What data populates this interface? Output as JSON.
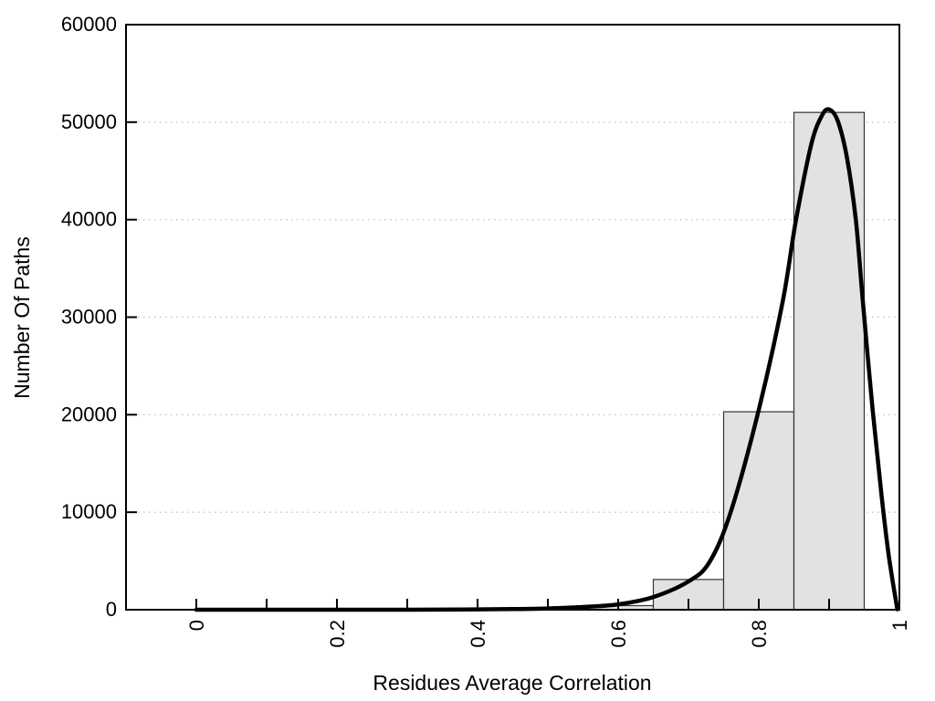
{
  "figure": {
    "background": "#ffffff",
    "description": "Histogram with fitted density curve"
  },
  "chart_data": {
    "type": "bar",
    "subtype": "histogram-with-fit-line",
    "title": "",
    "xlabel": "Residues Average Correlation",
    "ylabel": "Number Of Paths",
    "xlim": [
      -0.1,
      1.0
    ],
    "ylim": [
      0,
      60000
    ],
    "x_ticks": {
      "values": [
        0,
        0.2,
        0.4,
        0.6,
        0.8,
        1
      ],
      "labels": [
        "0",
        "0.2",
        "0.4",
        "0.6",
        "0.8",
        "1"
      ],
      "label_rotation_deg": -90
    },
    "x_minor_ticks": [
      0.1,
      0.3,
      0.5,
      0.7,
      0.9
    ],
    "y_ticks": {
      "values": [
        0,
        10000,
        20000,
        30000,
        40000,
        50000,
        60000
      ],
      "labels": [
        "0",
        "10000",
        "20000",
        "30000",
        "40000",
        "50000",
        "60000"
      ]
    },
    "grid": {
      "horizontal_dotted_at": [
        10000,
        20000,
        30000,
        40000,
        50000
      ]
    },
    "histogram": {
      "bin_edges": [
        0.55,
        0.65,
        0.75,
        0.85,
        0.95
      ],
      "counts": [
        420,
        3100,
        20300,
        51000
      ]
    },
    "fit_curve": {
      "peak": {
        "x": 0.9,
        "y": 51300
      },
      "points": [
        [
          0.0,
          0
        ],
        [
          0.1,
          0
        ],
        [
          0.2,
          0
        ],
        [
          0.3,
          0
        ],
        [
          0.38,
          20
        ],
        [
          0.45,
          70
        ],
        [
          0.5,
          130
        ],
        [
          0.55,
          280
        ],
        [
          0.6,
          550
        ],
        [
          0.65,
          1300
        ],
        [
          0.7,
          2900
        ],
        [
          0.73,
          4900
        ],
        [
          0.76,
          10000
        ],
        [
          0.8,
          20500
        ],
        [
          0.834,
          31600
        ],
        [
          0.853,
          40000
        ],
        [
          0.875,
          47800
        ],
        [
          0.89,
          50700
        ],
        [
          0.9,
          51300
        ],
        [
          0.912,
          50200
        ],
        [
          0.925,
          46500
        ],
        [
          0.938,
          40000
        ],
        [
          0.948,
          31600
        ],
        [
          0.962,
          20500
        ],
        [
          0.975,
          11500
        ],
        [
          0.985,
          5500
        ],
        [
          0.997,
          50
        ]
      ]
    },
    "colors": {
      "bar_fill": "#e2e2e2",
      "bar_outline": "#333333",
      "curve": "#000000",
      "frame": "#000000",
      "grid": "#c4c4c4",
      "text": "#000000",
      "background": "#ffffff"
    },
    "legend": null
  }
}
